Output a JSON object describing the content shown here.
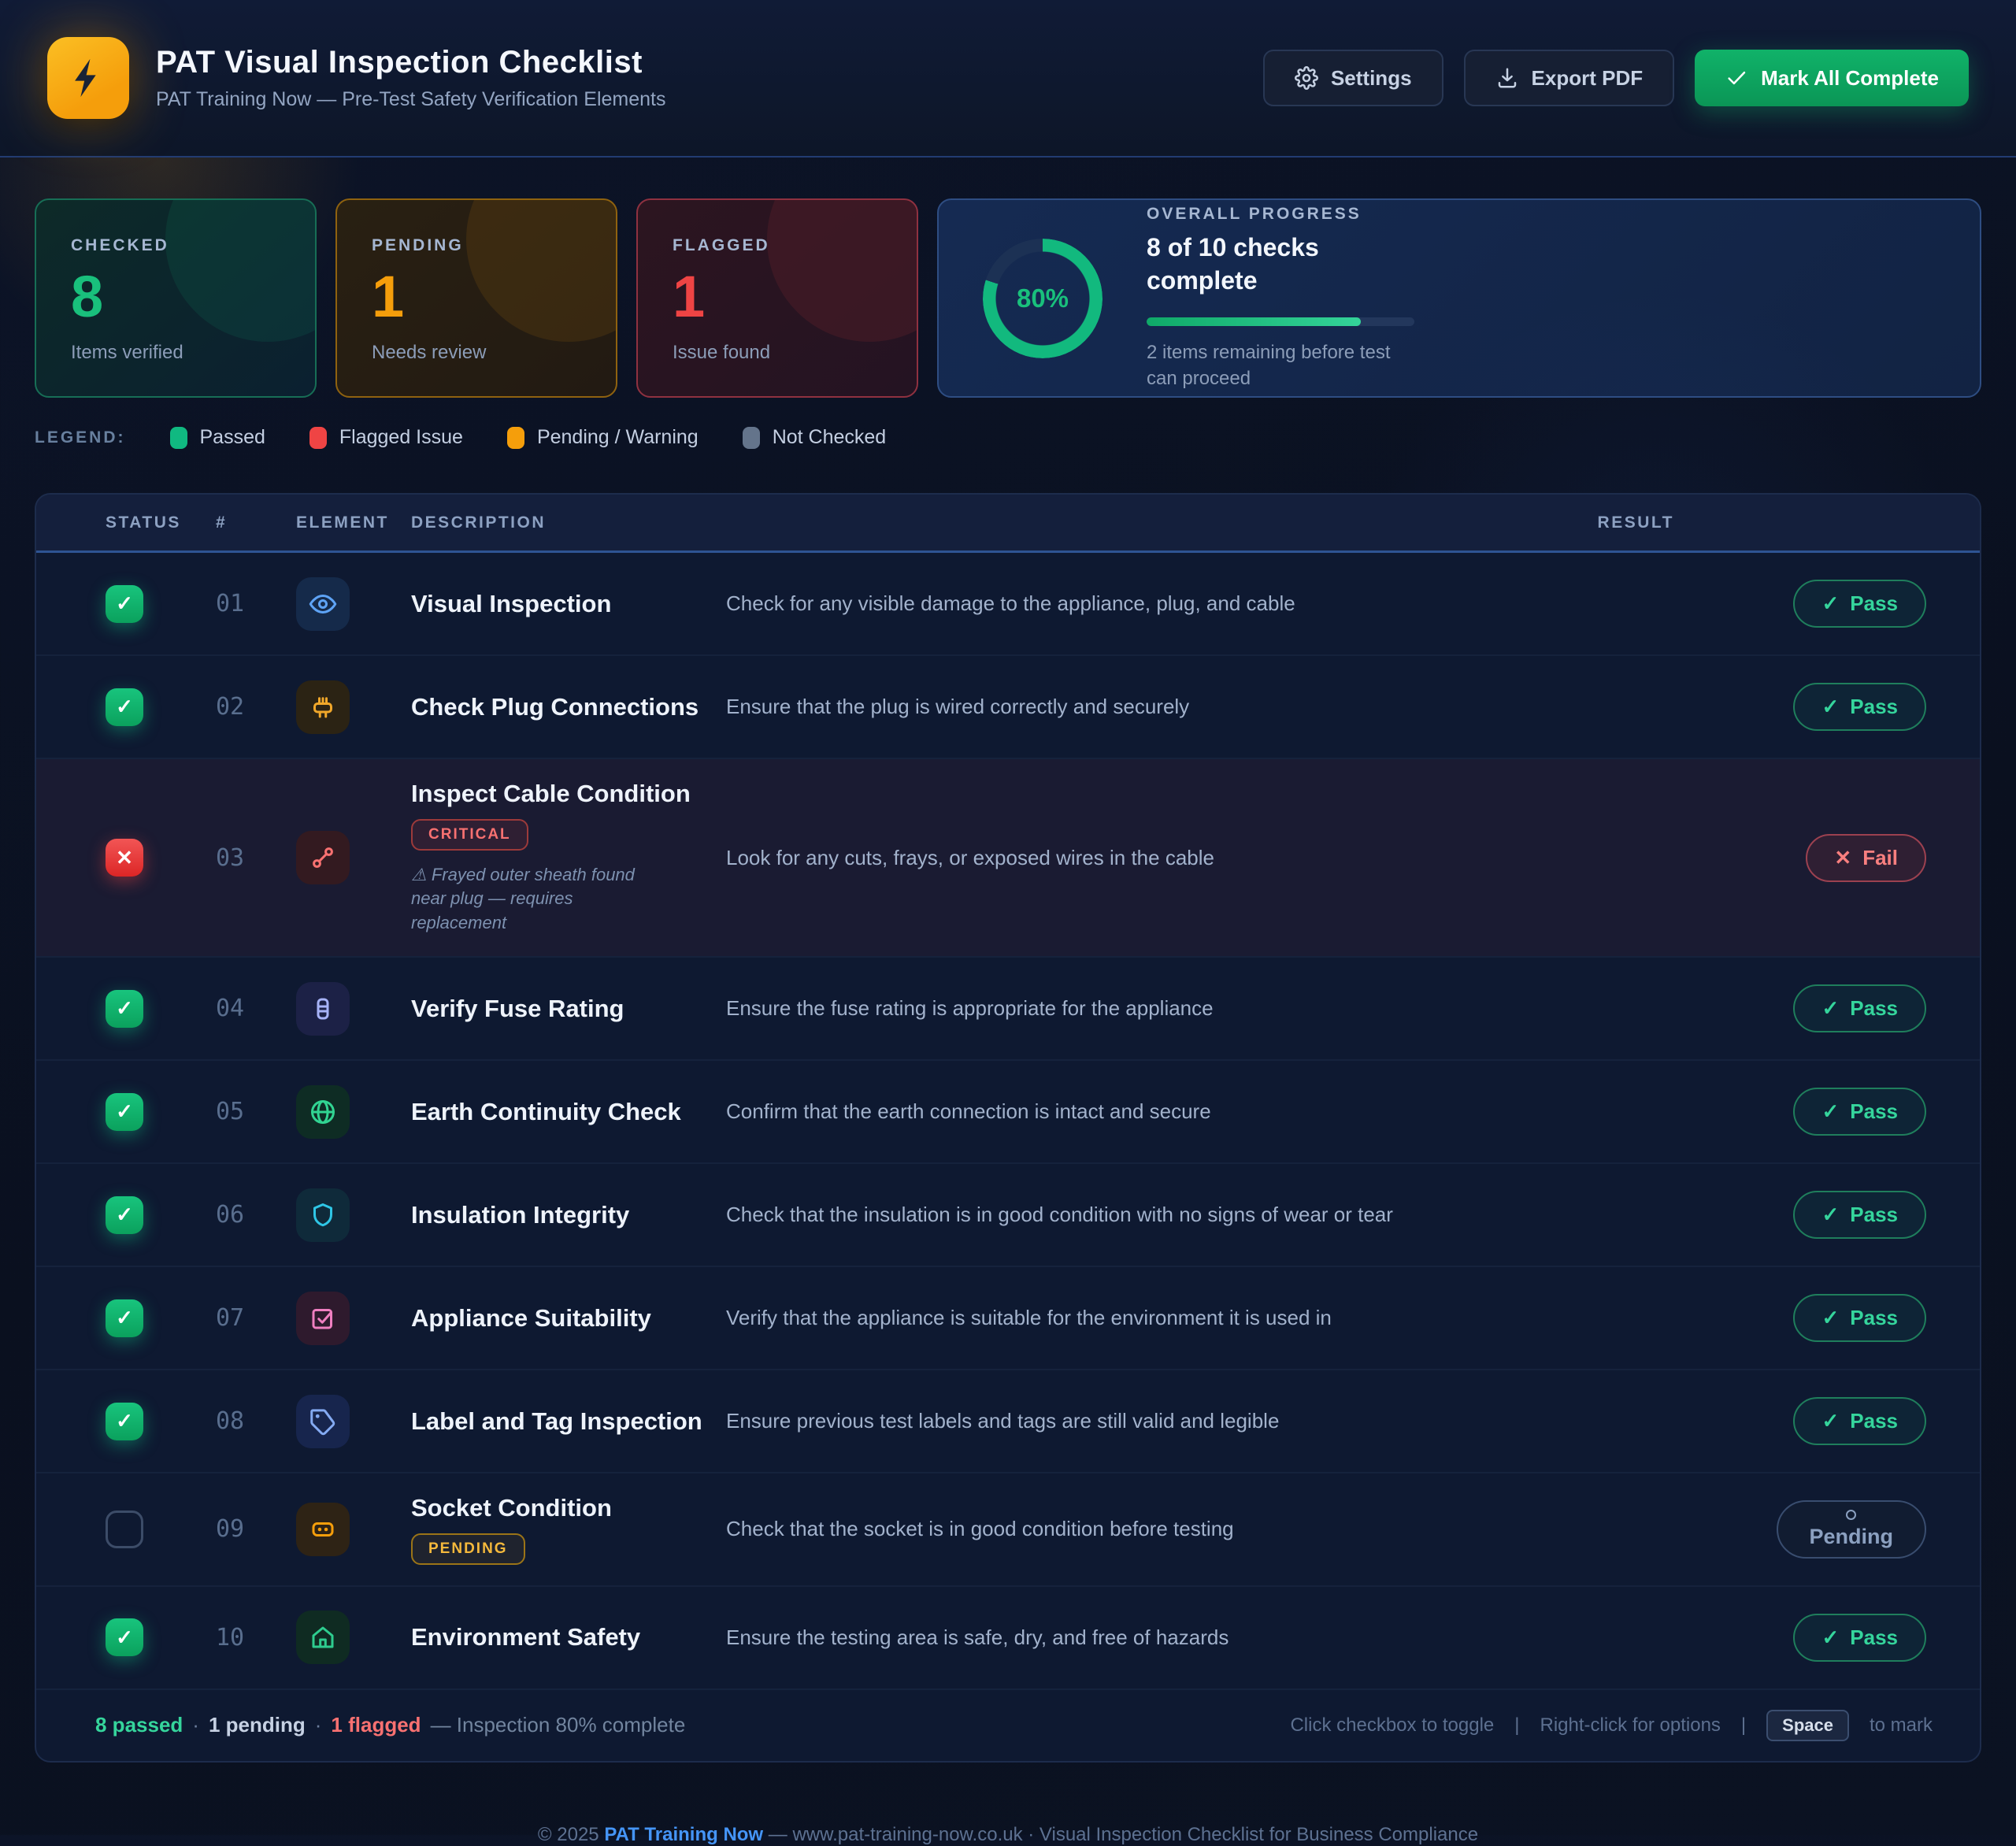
{
  "header": {
    "title": "PAT Visual Inspection Checklist",
    "subtitle": "PAT Training Now — Pre-Test Safety Verification Elements",
    "logo_icon": "lightning-bolt-icon",
    "buttons": {
      "settings": "Settings",
      "export": "Export PDF",
      "mark_all": "Mark All Complete"
    }
  },
  "stats": {
    "checked": {
      "label": "CHECKED",
      "value": "8",
      "sub": "Items verified"
    },
    "pending": {
      "label": "PENDING",
      "value": "1",
      "sub": "Needs review"
    },
    "flagged": {
      "label": "FLAGGED",
      "value": "1",
      "sub": "Issue found"
    },
    "progress": {
      "label": "OVERALL PROGRESS",
      "percent_label": "80%",
      "percent": 80,
      "headline": "8 of 10 checks complete",
      "note": "2 items remaining before test can proceed",
      "ring_color": "#12b97e",
      "ring_track": "#1c3154"
    }
  },
  "legend": {
    "label": "LEGEND:",
    "items": [
      {
        "name": "Passed",
        "color": "#10b981"
      },
      {
        "name": "Flagged Issue",
        "color": "#ef4444"
      },
      {
        "name": "Pending / Warning",
        "color": "#f59e0b"
      },
      {
        "name": "Not Checked",
        "color": "#64748b"
      }
    ]
  },
  "table": {
    "columns": [
      "STATUS",
      "#",
      "ELEMENT",
      "DESCRIPTION",
      "RESULT"
    ],
    "rows": [
      {
        "num": "01",
        "status": "checked",
        "icon": "eye-icon",
        "tile_bg": "#152a4a",
        "tile_fg": "#5ea3f5",
        "title": "Visual Inspection",
        "badge": null,
        "note": null,
        "description": "Check for any visible damage to the appliance, plug, and cable",
        "result": {
          "type": "pass",
          "label": "Pass"
        }
      },
      {
        "num": "02",
        "status": "checked",
        "icon": "plug-icon",
        "tile_bg": "#2b2314",
        "tile_fg": "#f0a72a",
        "title": "Check Plug Connections",
        "badge": null,
        "note": null,
        "description": "Ensure that the plug is wired correctly and securely",
        "result": {
          "type": "pass",
          "label": "Pass"
        }
      },
      {
        "num": "03",
        "status": "flagged",
        "icon": "cable-icon",
        "tile_bg": "#331a20",
        "tile_fg": "#f87171",
        "title": "Inspect Cable Condition",
        "badge": {
          "text": "CRITICAL",
          "type": "critical"
        },
        "note": "⚠ Frayed outer sheath found near plug — requires replacement",
        "description": "Look for any cuts, frays, or exposed wires in the cable",
        "result": {
          "type": "fail",
          "label": "Fail"
        }
      },
      {
        "num": "04",
        "status": "checked",
        "icon": "fuse-icon",
        "tile_bg": "#1c2146",
        "tile_fg": "#a7b3f7",
        "title": "Verify Fuse Rating",
        "badge": null,
        "note": null,
        "description": "Ensure the fuse rating is appropriate for the appliance",
        "result": {
          "type": "pass",
          "label": "Pass"
        }
      },
      {
        "num": "05",
        "status": "checked",
        "icon": "globe-icon",
        "tile_bg": "#0e2c24",
        "tile_fg": "#31d492",
        "title": "Earth Continuity Check",
        "badge": null,
        "note": null,
        "description": "Confirm that the earth connection is intact and secure",
        "result": {
          "type": "pass",
          "label": "Pass"
        }
      },
      {
        "num": "06",
        "status": "checked",
        "icon": "shield-icon",
        "tile_bg": "#0f2a3a",
        "tile_fg": "#2fc6e6",
        "title": "Insulation Integrity",
        "badge": null,
        "note": null,
        "description": "Check that the insulation is in good condition with no signs of wear or tear",
        "result": {
          "type": "pass",
          "label": "Pass"
        }
      },
      {
        "num": "07",
        "status": "checked",
        "icon": "check-square-icon",
        "tile_bg": "#2e1a2d",
        "tile_fg": "#ef7fc0",
        "title": "Appliance Suitability",
        "badge": null,
        "note": null,
        "description": "Verify that the appliance is suitable for the environment it is used in",
        "result": {
          "type": "pass",
          "label": "Pass"
        }
      },
      {
        "num": "08",
        "status": "checked",
        "icon": "tag-icon",
        "tile_bg": "#17254d",
        "tile_fg": "#84aaf2",
        "title": "Label and Tag Inspection",
        "badge": null,
        "note": null,
        "description": "Ensure previous test labels and tags are still valid and legible",
        "result": {
          "type": "pass",
          "label": "Pass"
        }
      },
      {
        "num": "09",
        "status": "unchecked",
        "icon": "socket-icon",
        "tile_bg": "#2e2315",
        "tile_fg": "#f59e0b",
        "title": "Socket Condition",
        "badge": {
          "text": "PENDING",
          "type": "pending"
        },
        "note": null,
        "description": "Check that the socket is in good condition before testing",
        "result": {
          "type": "pending",
          "label": "Pending"
        }
      },
      {
        "num": "10",
        "status": "checked",
        "icon": "home-icon",
        "tile_bg": "#0f2b22",
        "tile_fg": "#2ecc8f",
        "title": "Environment Safety",
        "badge": null,
        "note": null,
        "description": "Ensure the testing area is safe, dry, and free of hazards",
        "result": {
          "type": "pass",
          "label": "Pass"
        }
      }
    ]
  },
  "table_footer": {
    "passed": "8 passed",
    "sep1": "·",
    "pending": "1 pending",
    "sep2": "·",
    "flagged": "1 flagged",
    "summary": "— Inspection 80% complete",
    "hint1": "Click checkbox to toggle",
    "divider": "|",
    "hint2": "Right-click for options",
    "kbd": "Space",
    "hint3": "to mark"
  },
  "page_footer": {
    "copyright": "© 2025 ",
    "brand": "PAT Training Now",
    "rest": " — www.pat-training-now.co.uk · Visual Inspection Checklist for Business Compliance"
  }
}
